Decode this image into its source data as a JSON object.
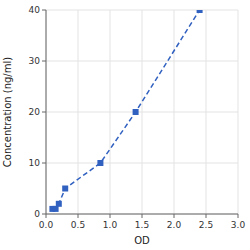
{
  "chart_data": {
    "type": "line",
    "x": [
      0.1,
      0.15,
      0.2,
      0.3,
      0.85,
      1.4,
      2.4
    ],
    "values": [
      1,
      1,
      2,
      5,
      10,
      20,
      40
    ],
    "x_label": "OD",
    "y_label": "Concentration (ng/ml)",
    "xlim": [
      0,
      3.0
    ],
    "ylim": [
      0,
      40
    ],
    "xticks": [
      {
        "value": 0,
        "label": "0.0"
      },
      0.5,
      {
        "value": 1.0,
        "label": "1.0"
      },
      1.5,
      {
        "value": 2.0,
        "label": "2.0"
      },
      2.5,
      {
        "value": 3.0,
        "label": "3.0"
      }
    ],
    "yticks": [
      0,
      10,
      20,
      30,
      40
    ],
    "color": "#3060c0",
    "marker": "square",
    "line_style": "dashed",
    "grid": true
  }
}
